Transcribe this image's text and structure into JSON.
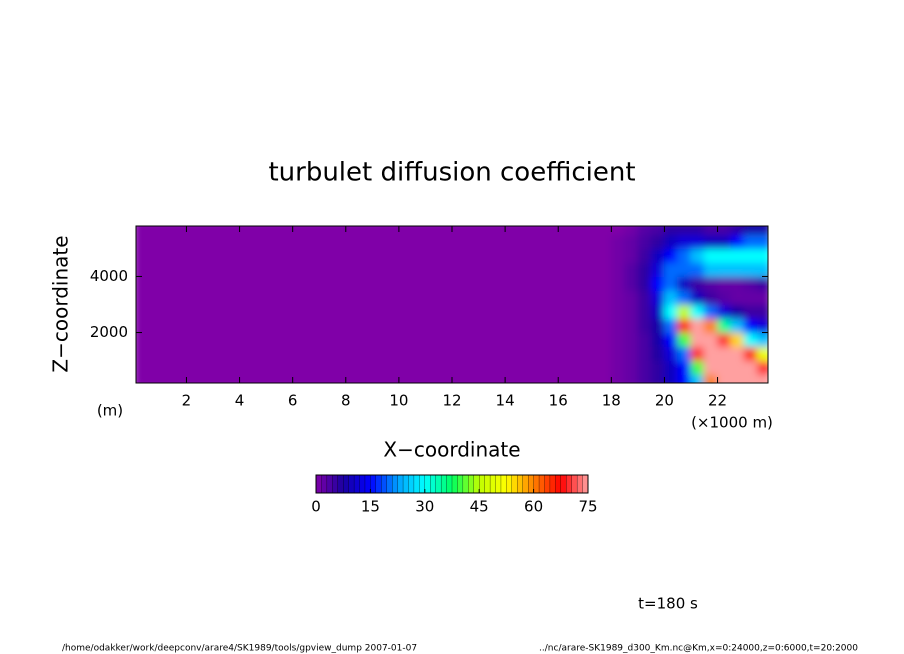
{
  "chart_data": {
    "type": "heatmap",
    "title": "turbulet diffusion coefficient",
    "xlabel": "X−coordinate",
    "ylabel": "Z−coordinate",
    "ylabel_unit": "(m)",
    "xlabel_unit": "(×1000 m)",
    "time_label": "t=180 s",
    "footer_left": "/home/odakker/work/deepconv/arare4/SK1989/tools/gpview_dump  2007-01-07",
    "footer_right": "../nc/arare-SK1989_d300_Km.nc@Km,x=0:24000,z=0:6000,t=20:2000",
    "xlim": [
      0.1,
      23.9
    ],
    "ylim": [
      200,
      5800
    ],
    "xticks": [
      2,
      4,
      6,
      8,
      10,
      12,
      14,
      16,
      18,
      20,
      22
    ],
    "yticks": [
      2000,
      4000
    ],
    "xbins": [
      0,
      17.5,
      18,
      18.5,
      19,
      19.5,
      20,
      20.5,
      21,
      21.5,
      22,
      22.5,
      23,
      23.5,
      24
    ],
    "zbins": [
      0,
      500,
      1000,
      1500,
      2000,
      2500,
      3000,
      3500,
      4000,
      4500,
      5000,
      5500,
      6000
    ],
    "values": [
      [
        0,
        0,
        1,
        2,
        4,
        6,
        10,
        15,
        25,
        60,
        75,
        75,
        75,
        75
      ],
      [
        0,
        0,
        1,
        2,
        4,
        6,
        10,
        15,
        40,
        75,
        75,
        75,
        75,
        70
      ],
      [
        0,
        0,
        1,
        2,
        4,
        7,
        12,
        20,
        70,
        75,
        75,
        75,
        65,
        50
      ],
      [
        0,
        0,
        1,
        2,
        4,
        8,
        15,
        40,
        75,
        75,
        70,
        55,
        30,
        25
      ],
      [
        0,
        0,
        1,
        2,
        5,
        8,
        20,
        65,
        75,
        60,
        35,
        25,
        15,
        12
      ],
      [
        0,
        0,
        1,
        2,
        5,
        10,
        30,
        45,
        30,
        20,
        12,
        8,
        5,
        5
      ],
      [
        0,
        0,
        1,
        2,
        5,
        12,
        25,
        20,
        10,
        5,
        3,
        2,
        2,
        2
      ],
      [
        0,
        0,
        1,
        3,
        6,
        15,
        20,
        10,
        5,
        3,
        2,
        2,
        3,
        5
      ],
      [
        0,
        0,
        1,
        3,
        6,
        12,
        20,
        20,
        20,
        25,
        25,
        25,
        25,
        25
      ],
      [
        0,
        0,
        1,
        2,
        5,
        10,
        15,
        20,
        25,
        30,
        30,
        30,
        30,
        30
      ],
      [
        0,
        0,
        1,
        2,
        4,
        6,
        10,
        12,
        12,
        10,
        10,
        15,
        20,
        20
      ],
      [
        0,
        0,
        0,
        1,
        3,
        4,
        6,
        6,
        6,
        4,
        4,
        6,
        8,
        8
      ]
    ],
    "colorbar": {
      "lim": [
        0,
        75
      ],
      "ticks": [
        0,
        15,
        30,
        45,
        60,
        75
      ],
      "colors": [
        "#8000a8",
        "#1a00a0",
        "#0000ff",
        "#00a0ff",
        "#00ffff",
        "#00ff60",
        "#c0ff00",
        "#ffff00",
        "#ff8000",
        "#ff0000",
        "#ffa0a0"
      ]
    }
  }
}
